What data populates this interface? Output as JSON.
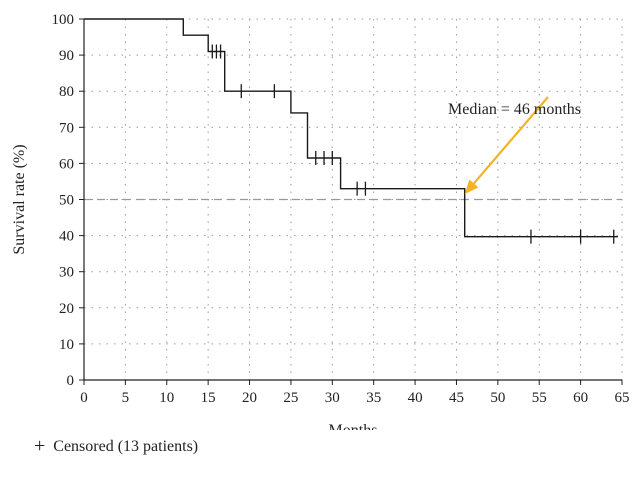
{
  "chart_data": {
    "type": "line",
    "title": "",
    "xlabel": "Months",
    "ylabel": "Survival rate (%)",
    "xlim": [
      0,
      65
    ],
    "ylim": [
      0,
      100
    ],
    "x_ticks": [
      0,
      5,
      10,
      15,
      20,
      25,
      30,
      35,
      40,
      45,
      50,
      55,
      60,
      65
    ],
    "y_ticks": [
      0,
      10,
      20,
      30,
      40,
      50,
      60,
      70,
      80,
      90,
      100
    ],
    "grid": "dotted",
    "series": [
      {
        "step_points": [
          {
            "x": 0,
            "y": 100
          },
          {
            "x": 12,
            "y": 100
          },
          {
            "x": 12,
            "y": 95.5
          },
          {
            "x": 15,
            "y": 95.5
          },
          {
            "x": 15,
            "y": 91
          },
          {
            "x": 17,
            "y": 91
          },
          {
            "x": 17,
            "y": 80
          },
          {
            "x": 25,
            "y": 80
          },
          {
            "x": 25,
            "y": 74
          },
          {
            "x": 27,
            "y": 74
          },
          {
            "x": 27,
            "y": 61.5
          },
          {
            "x": 31,
            "y": 61.5
          },
          {
            "x": 31,
            "y": 53
          },
          {
            "x": 46,
            "y": 53
          },
          {
            "x": 46,
            "y": 39.7
          },
          {
            "x": 64.5,
            "y": 39.7
          }
        ],
        "color": "#1a1a1a"
      }
    ],
    "censored": [
      {
        "x": 15.5,
        "y": 91
      },
      {
        "x": 16,
        "y": 91
      },
      {
        "x": 16.5,
        "y": 91
      },
      {
        "x": 19,
        "y": 80
      },
      {
        "x": 23,
        "y": 80
      },
      {
        "x": 28,
        "y": 61.5
      },
      {
        "x": 29,
        "y": 61.5
      },
      {
        "x": 30,
        "y": 61.5
      },
      {
        "x": 33,
        "y": 53
      },
      {
        "x": 34,
        "y": 53
      },
      {
        "x": 54,
        "y": 39.7
      },
      {
        "x": 60,
        "y": 39.7
      },
      {
        "x": 64,
        "y": 39.7
      }
    ],
    "reference_line": {
      "y": 50,
      "style": "dashed",
      "color": "#999999"
    },
    "annotation": {
      "text": "Median = 46 months",
      "target": {
        "x": 46,
        "y": 51.5
      },
      "arrow_color": "#f5b324"
    },
    "legend": {
      "symbol": "+",
      "text": "Censored (13 patients)",
      "position": "bottom-left"
    }
  }
}
